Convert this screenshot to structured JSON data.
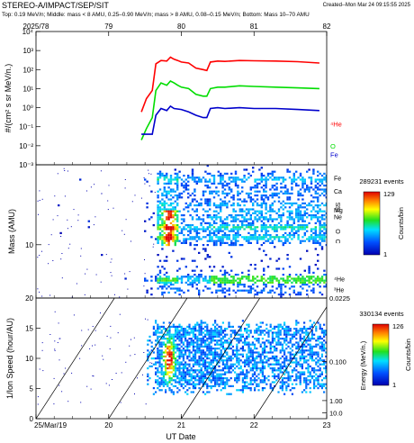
{
  "header": {
    "title": "STEREO-A/IMPACT/SEP/SIT",
    "created": "Created--Mon Mar 24 09:15:55 2025",
    "subtitle": "Top: 0.19 MeV/n; Middle: mass < 8 AMU, 0.25–0.90 MeV/n; mass > 8 AMU, 0.08–0.15 MeV/n; Bottom: Mass 10–70 AMU"
  },
  "colors": {
    "he4": "#ff0000",
    "o": "#00dd00",
    "fe": "#0000cc",
    "background": "#ffffff"
  },
  "chart_data": [
    {
      "type": "line",
      "panel": "top",
      "top_axis_ticks": [
        "2025/78",
        "79",
        "80",
        "81",
        "82"
      ],
      "top_axis_values": [
        78,
        79,
        80,
        81,
        82
      ],
      "xlim": [
        78,
        82
      ],
      "ylabel": "#/(cm² s sr MeV/n.)",
      "yscale": "log",
      "ylim": [
        0.001,
        10000
      ],
      "y_ticks": [
        "10⁻³",
        "10⁻²",
        "10⁻¹",
        "10⁰",
        "10¹",
        "10²",
        "10³",
        "10⁴"
      ],
      "y_tick_values": [
        0.001,
        0.01,
        0.1,
        1,
        10,
        100,
        1000,
        10000
      ],
      "series": [
        {
          "name": "⁴He",
          "color": "#ff0000",
          "x": [
            79.45,
            79.52,
            79.6,
            79.65,
            79.72,
            79.8,
            79.85,
            79.9,
            79.95,
            80.0,
            80.1,
            80.2,
            80.3,
            80.35,
            80.4,
            80.5,
            80.6,
            80.8,
            81.0,
            81.3,
            81.6,
            81.9
          ],
          "y": [
            0.6,
            3,
            8,
            200,
            300,
            280,
            450,
            350,
            300,
            250,
            220,
            120,
            100,
            90,
            250,
            280,
            270,
            300,
            290,
            280,
            260,
            220
          ]
        },
        {
          "name": "O",
          "color": "#00dd00",
          "x": [
            79.45,
            79.52,
            79.6,
            79.65,
            79.72,
            79.8,
            79.85,
            79.9,
            79.95,
            80.0,
            80.1,
            80.2,
            80.3,
            80.35,
            80.4,
            80.5,
            80.6,
            80.8,
            81.0,
            81.3,
            81.6,
            81.9
          ],
          "y": [
            0.02,
            0.08,
            0.3,
            8,
            20,
            15,
            25,
            20,
            15,
            12,
            10,
            5,
            4,
            4,
            10,
            12,
            12,
            14,
            13,
            12,
            11,
            10
          ]
        },
        {
          "name": "Fe",
          "color": "#0000cc",
          "x": [
            79.45,
            79.5,
            79.6,
            79.65,
            79.72,
            79.8,
            79.85,
            79.9,
            80.0,
            80.1,
            80.2,
            80.3,
            80.35,
            80.4,
            80.5,
            80.6,
            80.8,
            81.0,
            81.3,
            81.6,
            81.9
          ],
          "y": [
            0.04,
            0.04,
            0.04,
            0.4,
            0.9,
            0.7,
            1.2,
            0.9,
            0.8,
            0.6,
            0.4,
            0.3,
            0.3,
            0.9,
            1.0,
            0.9,
            1.0,
            0.9,
            0.9,
            0.8,
            0.7
          ]
        }
      ]
    },
    {
      "type": "heatmap",
      "panel": "middle",
      "ylabel": "Mass (AMU)",
      "yscale": "log",
      "ylim": [
        2.5,
        80
      ],
      "y_ticks": [
        "10"
      ],
      "y_tick_values": [
        10
      ],
      "species_labels": [
        "Fe",
        "Ca",
        "Si",
        "S",
        "Mg",
        "Ne",
        "O",
        "C",
        "⁴He",
        "³He"
      ],
      "species_masses": [
        56,
        40,
        28,
        32,
        24,
        20,
        16,
        12,
        4,
        3
      ],
      "events_label": "289231 events",
      "colorbar_label": "Counts/bin",
      "colorbar_ticks": [
        "129",
        "1"
      ],
      "colorbar_range": [
        1,
        129
      ]
    },
    {
      "type": "heatmap",
      "panel": "bottom",
      "ylabel": "1/Ion Speed (hour/AU)",
      "ylim": [
        0,
        20
      ],
      "y_ticks": [
        "0",
        "5",
        "10",
        "15",
        "20"
      ],
      "y_tick_values": [
        0,
        5,
        10,
        15,
        20
      ],
      "xlabel": "UT Date",
      "x_ticks": [
        "25/Mar/19",
        "20",
        "21",
        "22",
        "23"
      ],
      "x_tick_values": [
        78,
        79,
        80,
        81,
        82
      ],
      "right_ylabel": "Energy (MeV/n.)",
      "right_ticks": [
        "0.0225",
        "0.100",
        "1.00",
        "10.0"
      ],
      "right_tick_values": [
        0.0225,
        0.1,
        1,
        10
      ],
      "events_label": "330134 events",
      "colorbar_label": "Counts/bin",
      "colorbar_ticks": [
        "126",
        "1"
      ],
      "colorbar_range": [
        1,
        126
      ]
    }
  ]
}
